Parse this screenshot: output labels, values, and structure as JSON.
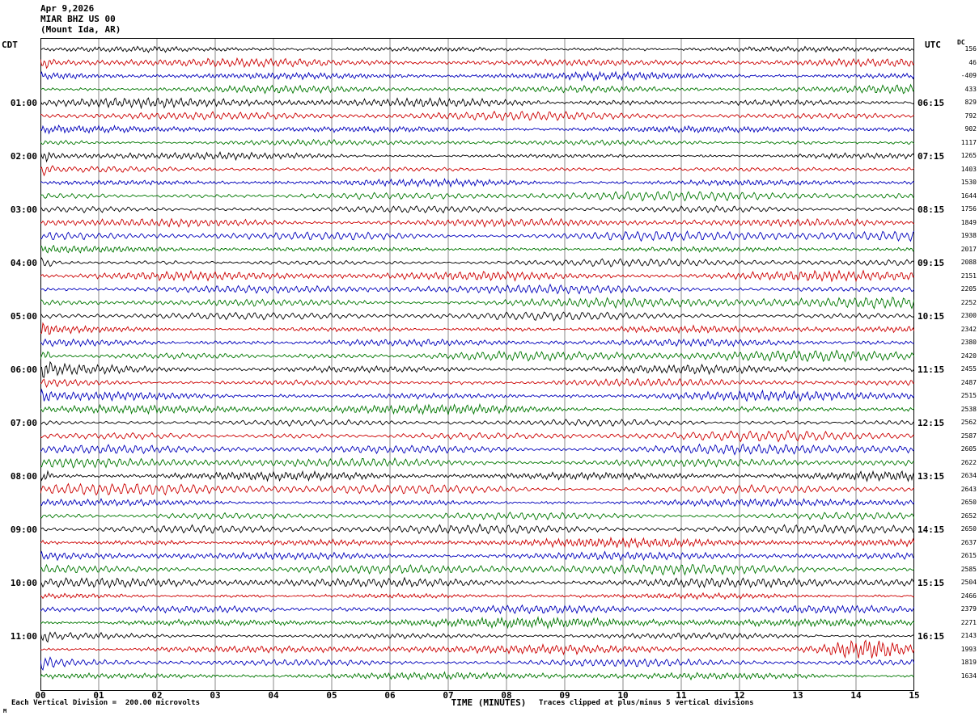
{
  "header": {
    "date": "Apr 9,2026",
    "station": "MIAR BHZ US 00",
    "location": "(Mount Ida, AR)",
    "left_timezone": "CDT",
    "right_timezone": "UTC",
    "dc_column_header": "DC"
  },
  "footer": {
    "scale_note": "Each Vertical Division =  200.00 microvolts",
    "xaxis_label": "TIME (MINUTES)",
    "clip_note": "Traces clipped at plus/minus 5 vertical divisions",
    "corner_mark": "M"
  },
  "chart_data": {
    "type": "line",
    "subtype": "seismic-helicorder",
    "title": "MIAR BHZ US 00 (Mount Ida, AR) Apr 9,2026",
    "xlabel": "TIME (MINUTES)",
    "x_ticks": [
      "00",
      "01",
      "02",
      "03",
      "04",
      "05",
      "06",
      "07",
      "08",
      "09",
      "10",
      "11",
      "12",
      "13",
      "14",
      "15"
    ],
    "x_range_minutes": [
      0,
      15
    ],
    "rows": 48,
    "minutes_per_row": 15,
    "grid": "vertical lines at every minute",
    "trace_colors": [
      "#000000",
      "#cc0000",
      "#0000bb",
      "#007700"
    ],
    "trace_color_cycle": "black, red, blue, green repeating per 15-minute row",
    "left_time_labels": [
      "01:00",
      "02:00",
      "03:00",
      "04:00",
      "05:00",
      "06:00",
      "07:00",
      "08:00",
      "09:00",
      "10:00",
      "11:00"
    ],
    "right_time_labels": [
      "06:15",
      "07:15",
      "08:15",
      "09:15",
      "10:15",
      "11:15",
      "12:15",
      "13:15",
      "14:15",
      "15:15",
      "16:15"
    ],
    "first_row_start_cdt": "00:00",
    "last_row_start_cdt": "11:45",
    "dc_values": [
      156,
      46,
      -409,
      433,
      829,
      792,
      902,
      1117,
      1265,
      1403,
      1530,
      1644,
      1756,
      1849,
      1938,
      2017,
      2088,
      2151,
      2205,
      2252,
      2300,
      2342,
      2380,
      2420,
      2455,
      2487,
      2515,
      2538,
      2562,
      2587,
      2605,
      2622,
      2634,
      2643,
      2650,
      2652,
      2650,
      2637,
      2615,
      2585,
      2504,
      2466,
      2379,
      2271,
      2143,
      1993,
      1819,
      1634
    ],
    "waveform_description": "Continuous low-amplitude seismic background noise (microseisms) on every 15-minute trace; amplitudes stay within roughly one vertical division with slowly varying envelopes.",
    "event": {
      "row_start_cdt": "11:15",
      "row_color": "#cc0000",
      "position_minutes": 14.2,
      "description": "Higher-amplitude red burst near the right end of the 11:15 CDT trace"
    },
    "render_seed": 20260409
  }
}
